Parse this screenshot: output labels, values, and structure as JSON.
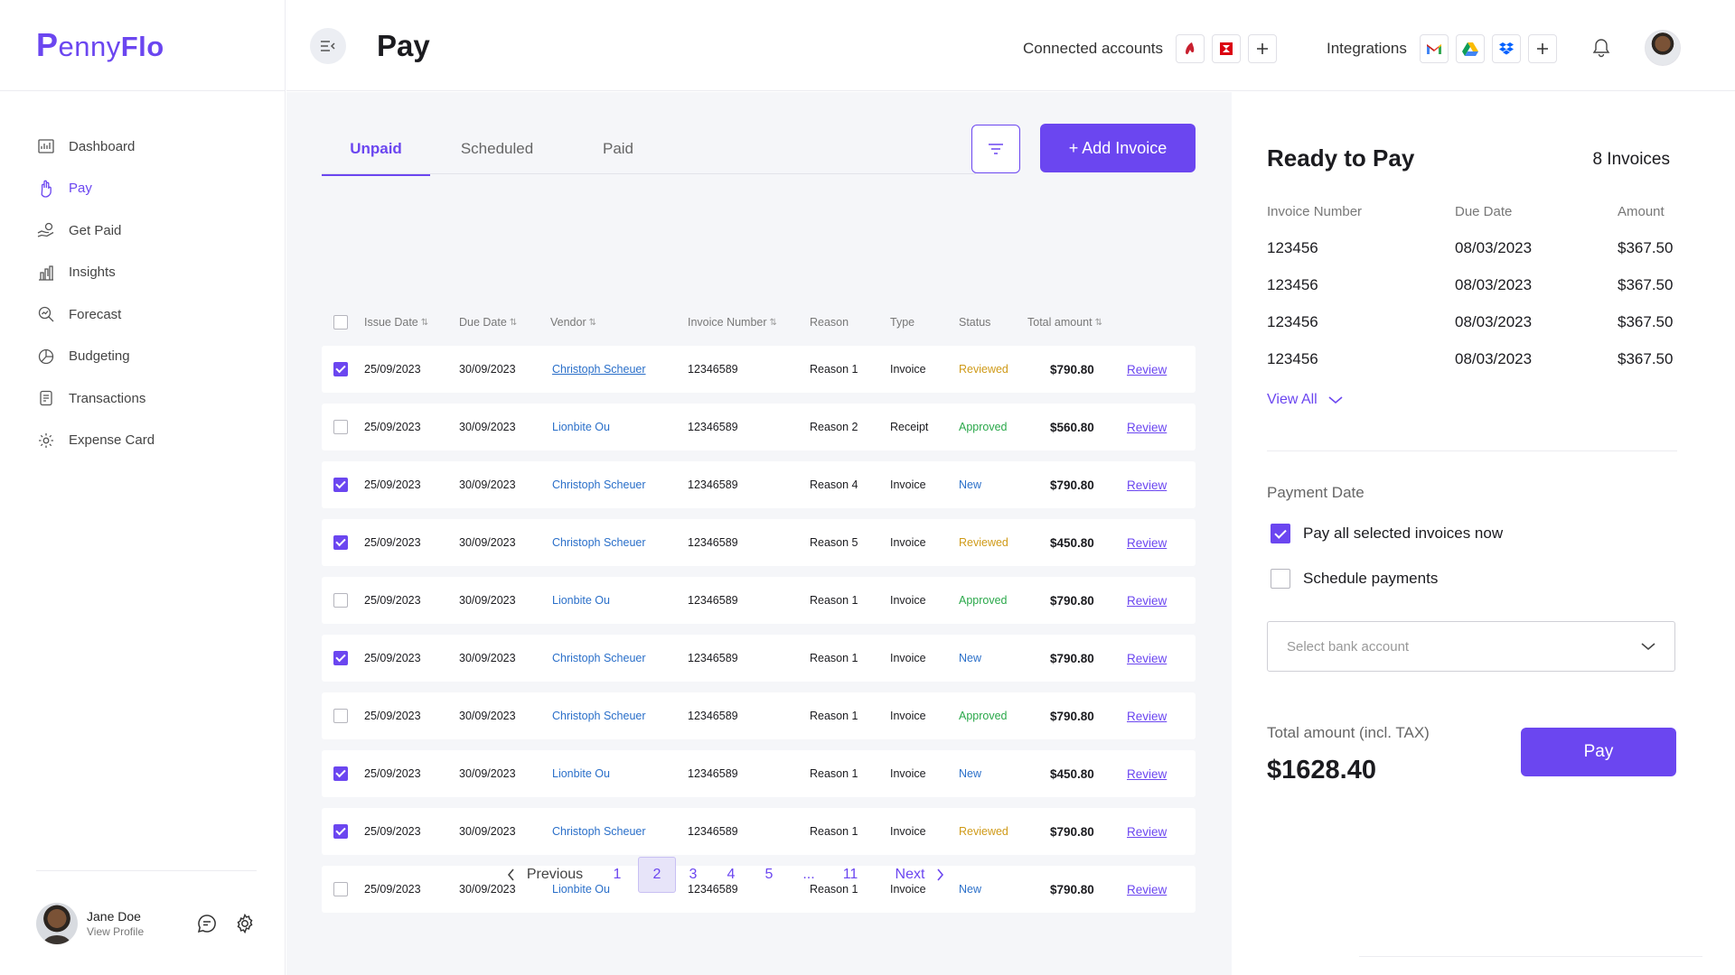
{
  "brand": {
    "logo_p": "P",
    "logo_rest_light": "enny",
    "logo_rest_bold": "Flo"
  },
  "sidebar": {
    "items": [
      {
        "label": "Dashboard",
        "icon": "dashboard-icon"
      },
      {
        "label": "Pay",
        "icon": "hand-icon",
        "active": true
      },
      {
        "label": "Get Paid",
        "icon": "hand-coin-icon"
      },
      {
        "label": "Insights",
        "icon": "bar-chart-icon"
      },
      {
        "label": "Forecast",
        "icon": "forecast-icon"
      },
      {
        "label": "Budgeting",
        "icon": "pie-icon"
      },
      {
        "label": "Transactions",
        "icon": "transactions-icon"
      },
      {
        "label": "Expense Card",
        "icon": "gear-icon"
      }
    ],
    "profile": {
      "name": "Jane Doe",
      "sub": "View Profile"
    }
  },
  "header": {
    "title": "Pay",
    "connected_label": "Connected accounts",
    "integrations_label": "Integrations"
  },
  "tabs": [
    "Unpaid",
    "Scheduled",
    "Paid"
  ],
  "add_invoice_label": "+ Add Invoice",
  "table": {
    "columns": [
      "Issue Date",
      "Due Date",
      "Vendor",
      "Invoice Number",
      "Reason",
      "Type",
      "Status",
      "Total amount"
    ],
    "sortable_icon": "⇅",
    "rows": [
      {
        "checked": true,
        "issue": "25/09/2023",
        "due": "30/09/2023",
        "vendor": "Christoph Scheuer",
        "vendor_underlined": true,
        "number": "12346589",
        "reason": "Reason 1",
        "type": "Invoice",
        "status": "Reviewed",
        "amount": "$790.80",
        "action": "Review"
      },
      {
        "checked": false,
        "issue": "25/09/2023",
        "due": "30/09/2023",
        "vendor": "Lionbite Ou",
        "number": "12346589",
        "reason": "Reason 2",
        "type": "Receipt",
        "status": "Approved",
        "amount": "$560.80",
        "action": "Review"
      },
      {
        "checked": true,
        "issue": "25/09/2023",
        "due": "30/09/2023",
        "vendor": "Christoph Scheuer",
        "number": "12346589",
        "reason": "Reason 4",
        "type": "Invoice",
        "status": "New",
        "amount": "$790.80",
        "action": "Review"
      },
      {
        "checked": true,
        "issue": "25/09/2023",
        "due": "30/09/2023",
        "vendor": "Christoph Scheuer",
        "number": "12346589",
        "reason": "Reason 5",
        "type": "Invoice",
        "status": "Reviewed",
        "amount": "$450.80",
        "action": "Review"
      },
      {
        "checked": false,
        "issue": "25/09/2023",
        "due": "30/09/2023",
        "vendor": "Lionbite Ou",
        "number": "12346589",
        "reason": "Reason 1",
        "type": "Invoice",
        "status": "Approved",
        "amount": "$790.80",
        "action": "Review"
      },
      {
        "checked": true,
        "issue": "25/09/2023",
        "due": "30/09/2023",
        "vendor": "Christoph Scheuer",
        "number": "12346589",
        "reason": "Reason 1",
        "type": "Invoice",
        "status": "New",
        "amount": "$790.80",
        "action": "Review"
      },
      {
        "checked": false,
        "issue": "25/09/2023",
        "due": "30/09/2023",
        "vendor": "Christoph Scheuer",
        "number": "12346589",
        "reason": "Reason 1",
        "type": "Invoice",
        "status": "Approved",
        "amount": "$790.80",
        "action": "Review"
      },
      {
        "checked": true,
        "issue": "25/09/2023",
        "due": "30/09/2023",
        "vendor": "Lionbite Ou",
        "number": "12346589",
        "reason": "Reason 1",
        "type": "Invoice",
        "status": "New",
        "amount": "$450.80",
        "action": "Review"
      },
      {
        "checked": true,
        "issue": "25/09/2023",
        "due": "30/09/2023",
        "vendor": "Christoph Scheuer",
        "number": "12346589",
        "reason": "Reason 1",
        "type": "Invoice",
        "status": "Reviewed",
        "amount": "$790.80",
        "action": "Review"
      },
      {
        "checked": false,
        "issue": "25/09/2023",
        "due": "30/09/2023",
        "vendor": "Lionbite Ou",
        "number": "12346589",
        "reason": "Reason 1",
        "type": "Invoice",
        "status": "New",
        "amount": "$790.80",
        "action": "Review"
      }
    ]
  },
  "pagination": {
    "prev": "Previous",
    "pages": [
      "1",
      "2",
      "3",
      "4",
      "5",
      "...",
      "11"
    ],
    "current": "2",
    "next": "Next"
  },
  "ready": {
    "title": "Ready to Pay",
    "count": "8 Invoices",
    "columns": [
      "Invoice Number",
      "Due Date",
      "Amount"
    ],
    "rows": [
      {
        "number": "123456",
        "due": "08/03/2023",
        "amount": "$367.50"
      },
      {
        "number": "123456",
        "due": "08/03/2023",
        "amount": "$367.50"
      },
      {
        "number": "123456",
        "due": "08/03/2023",
        "amount": "$367.50"
      },
      {
        "number": "123456",
        "due": "08/03/2023",
        "amount": "$367.50"
      }
    ],
    "view_all": "View All",
    "payment_date_label": "Payment Date",
    "opt_now": "Pay all selected invoices now",
    "opt_now_checked": true,
    "opt_schedule": "Schedule payments",
    "opt_schedule_checked": false,
    "bank_placeholder": "Select bank account",
    "total_label": "Total amount (incl. TAX)",
    "total_value": "$1628.40",
    "pay_label": "Pay"
  },
  "colors": {
    "accent": "#6b46f0",
    "reviewed": "#cf9a18",
    "approved": "#2aa84a",
    "new": "#2a6fc9"
  }
}
